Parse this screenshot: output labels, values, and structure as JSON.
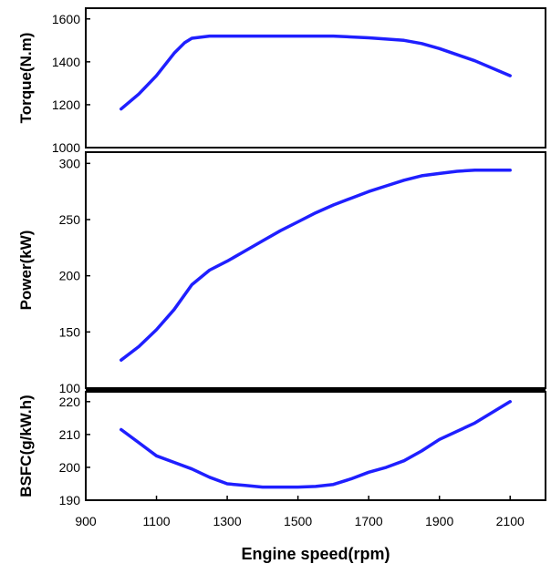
{
  "colors": {
    "line": "#1f1fff",
    "frame": "#000000"
  },
  "chart_data": {
    "type": "line",
    "shared_x": {
      "label": "Engine speed(rpm)",
      "lim": [
        900,
        2200
      ],
      "ticks": [
        900,
        1100,
        1300,
        1500,
        1700,
        1900,
        2100
      ]
    },
    "panels": [
      {
        "id": "torque",
        "ylabel": "Torque(N.m)",
        "ylim": [
          1000,
          1650
        ],
        "yticks": [
          1000,
          1200,
          1400,
          1600
        ],
        "series": [
          {
            "x": [
              1000,
              1050,
              1100,
              1150,
              1180,
              1200,
              1250,
              1300,
              1400,
              1500,
              1600,
              1700,
              1800,
              1850,
              1900,
              2000,
              2100
            ],
            "y": [
              1180,
              1250,
              1335,
              1440,
              1490,
              1510,
              1520,
              1520,
              1520,
              1520,
              1520,
              1512,
              1500,
              1485,
              1462,
              1405,
              1335
            ]
          }
        ]
      },
      {
        "id": "power",
        "ylabel": "Power(kW)",
        "ylim": [
          100,
          310
        ],
        "yticks": [
          100,
          150,
          200,
          250,
          300
        ],
        "series": [
          {
            "x": [
              1000,
              1050,
              1100,
              1150,
              1200,
              1250,
              1300,
              1350,
              1400,
              1450,
              1500,
              1550,
              1600,
              1650,
              1700,
              1750,
              1800,
              1850,
              1900,
              1950,
              2000,
              2050,
              2100
            ],
            "y": [
              125,
              137,
              152,
              170,
              192,
              205,
              213,
              222,
              231,
              240,
              248,
              256,
              263,
              269,
              275,
              280,
              285,
              289,
              291,
              293,
              294,
              294,
              294
            ]
          }
        ]
      },
      {
        "id": "bsfc",
        "ylabel": "BSFC(g/kW.h)",
        "ylim": [
          190,
          223
        ],
        "yticks": [
          190,
          200,
          210,
          220
        ],
        "series": [
          {
            "x": [
              1000,
              1050,
              1100,
              1150,
              1200,
              1250,
              1300,
              1350,
              1400,
              1450,
              1500,
              1550,
              1600,
              1650,
              1700,
              1750,
              1800,
              1850,
              1900,
              2000,
              2100
            ],
            "y": [
              211.5,
              207.5,
              203.5,
              201.5,
              199.5,
              197,
              195,
              194.5,
              194,
              194,
              194,
              194.2,
              194.8,
              196.5,
              198.5,
              200,
              202,
              205,
              208.5,
              213.5,
              220
            ]
          }
        ]
      }
    ]
  }
}
